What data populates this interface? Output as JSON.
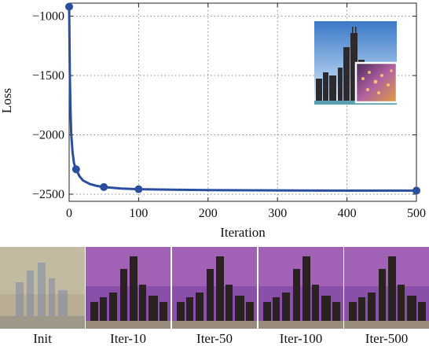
{
  "chart_data": {
    "type": "line",
    "xlabel": "Iteration",
    "ylabel": "Loss",
    "xlim": [
      0,
      500
    ],
    "ylim": [
      -2560,
      -890
    ],
    "xticks": [
      0,
      100,
      200,
      300,
      400,
      500
    ],
    "yticks": [
      -1000,
      -1500,
      -2000,
      -2500
    ],
    "ytick_labels": [
      "−1000",
      "−1500",
      "−2000",
      "−2500"
    ],
    "grid": true,
    "line_color": "#2a4f9e",
    "series": [
      {
        "x": [
          0,
          1,
          2,
          3,
          5,
          7,
          10,
          15,
          20,
          30,
          40,
          50,
          75,
          100,
          150,
          200,
          300,
          400,
          500
        ],
        "values": [
          -920,
          -1500,
          -1800,
          -2000,
          -2150,
          -2240,
          -2290,
          -2350,
          -2385,
          -2415,
          -2430,
          -2440,
          -2452,
          -2458,
          -2462,
          -2465,
          -2468,
          -2470,
          -2470
        ]
      }
    ],
    "markers": {
      "x": [
        0,
        10,
        50,
        100,
        500
      ],
      "values": [
        -920,
        -2290,
        -2440,
        -2458,
        -2470
      ]
    }
  },
  "thumbnails": [
    {
      "caption": "Init"
    },
    {
      "caption": "Iter-10"
    },
    {
      "caption": "Iter-50"
    },
    {
      "caption": "Iter-100"
    },
    {
      "caption": "Iter-500"
    }
  ],
  "colors": {
    "sky": "#7fa3d6",
    "style_purple": "#7a3f9a",
    "city_dark": "#2a2420"
  }
}
